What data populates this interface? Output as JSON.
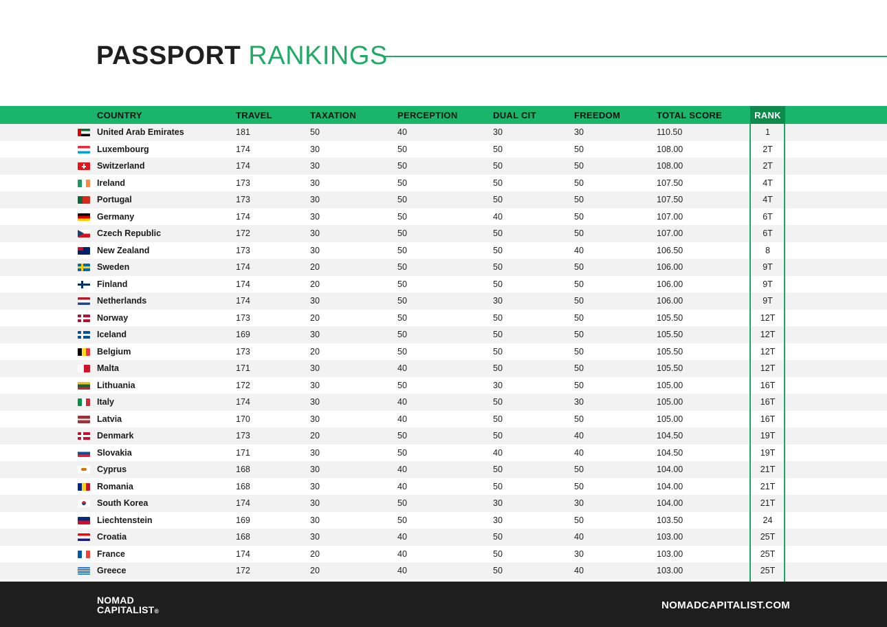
{
  "title": {
    "part1": "PASSPORT",
    "part2": "RANKINGS"
  },
  "headers": {
    "country": "COUNTRY",
    "travel": "TRAVEL",
    "taxation": "TAXATION",
    "perception": "PERCEPTION",
    "dual_cit": "DUAL CIT",
    "freedom": "FREEDOM",
    "total_score": "TOTAL SCORE",
    "rank": "RANK"
  },
  "rows": [
    {
      "country": "United Arab Emirates",
      "flag": "ae",
      "travel": "181",
      "taxation": "50",
      "perception": "40",
      "dual_cit": "30",
      "freedom": "30",
      "total": "110.50",
      "rank": "1"
    },
    {
      "country": "Luxembourg",
      "flag": "lu",
      "travel": "174",
      "taxation": "30",
      "perception": "50",
      "dual_cit": "50",
      "freedom": "50",
      "total": "108.00",
      "rank": "2T"
    },
    {
      "country": "Switzerland",
      "flag": "ch",
      "travel": "174",
      "taxation": "30",
      "perception": "50",
      "dual_cit": "50",
      "freedom": "50",
      "total": "108.00",
      "rank": "2T"
    },
    {
      "country": "Ireland",
      "flag": "ie",
      "travel": "173",
      "taxation": "30",
      "perception": "50",
      "dual_cit": "50",
      "freedom": "50",
      "total": "107.50",
      "rank": "4T"
    },
    {
      "country": "Portugal",
      "flag": "pt",
      "travel": "173",
      "taxation": "30",
      "perception": "50",
      "dual_cit": "50",
      "freedom": "50",
      "total": "107.50",
      "rank": "4T"
    },
    {
      "country": "Germany",
      "flag": "de",
      "travel": "174",
      "taxation": "30",
      "perception": "50",
      "dual_cit": "40",
      "freedom": "50",
      "total": "107.00",
      "rank": "6T"
    },
    {
      "country": "Czech Republic",
      "flag": "cz",
      "travel": "172",
      "taxation": "30",
      "perception": "50",
      "dual_cit": "50",
      "freedom": "50",
      "total": "107.00",
      "rank": "6T"
    },
    {
      "country": "New Zealand",
      "flag": "nz",
      "travel": "173",
      "taxation": "30",
      "perception": "50",
      "dual_cit": "50",
      "freedom": "40",
      "total": "106.50",
      "rank": "8"
    },
    {
      "country": "Sweden",
      "flag": "se",
      "travel": "174",
      "taxation": "20",
      "perception": "50",
      "dual_cit": "50",
      "freedom": "50",
      "total": "106.00",
      "rank": "9T"
    },
    {
      "country": "Finland",
      "flag": "fi",
      "travel": "174",
      "taxation": "20",
      "perception": "50",
      "dual_cit": "50",
      "freedom": "50",
      "total": "106.00",
      "rank": "9T"
    },
    {
      "country": "Netherlands",
      "flag": "nl",
      "travel": "174",
      "taxation": "30",
      "perception": "50",
      "dual_cit": "30",
      "freedom": "50",
      "total": "106.00",
      "rank": "9T"
    },
    {
      "country": "Norway",
      "flag": "no",
      "travel": "173",
      "taxation": "20",
      "perception": "50",
      "dual_cit": "50",
      "freedom": "50",
      "total": "105.50",
      "rank": "12T"
    },
    {
      "country": "Iceland",
      "flag": "is",
      "travel": "169",
      "taxation": "30",
      "perception": "50",
      "dual_cit": "50",
      "freedom": "50",
      "total": "105.50",
      "rank": "12T"
    },
    {
      "country": "Belgium",
      "flag": "be",
      "travel": "173",
      "taxation": "20",
      "perception": "50",
      "dual_cit": "50",
      "freedom": "50",
      "total": "105.50",
      "rank": "12T"
    },
    {
      "country": "Malta",
      "flag": "mt",
      "travel": "171",
      "taxation": "30",
      "perception": "40",
      "dual_cit": "50",
      "freedom": "50",
      "total": "105.50",
      "rank": "12T"
    },
    {
      "country": "Lithuania",
      "flag": "lt",
      "travel": "172",
      "taxation": "30",
      "perception": "50",
      "dual_cit": "30",
      "freedom": "50",
      "total": "105.00",
      "rank": "16T"
    },
    {
      "country": "Italy",
      "flag": "it",
      "travel": "174",
      "taxation": "30",
      "perception": "40",
      "dual_cit": "50",
      "freedom": "30",
      "total": "105.00",
      "rank": "16T"
    },
    {
      "country": "Latvia",
      "flag": "lv",
      "travel": "170",
      "taxation": "30",
      "perception": "40",
      "dual_cit": "50",
      "freedom": "50",
      "total": "105.00",
      "rank": "16T"
    },
    {
      "country": "Denmark",
      "flag": "dk",
      "travel": "173",
      "taxation": "20",
      "perception": "50",
      "dual_cit": "50",
      "freedom": "40",
      "total": "104.50",
      "rank": "19T"
    },
    {
      "country": "Slovakia",
      "flag": "sk",
      "travel": "171",
      "taxation": "30",
      "perception": "50",
      "dual_cit": "40",
      "freedom": "40",
      "total": "104.50",
      "rank": "19T"
    },
    {
      "country": "Cyprus",
      "flag": "cy",
      "travel": "168",
      "taxation": "30",
      "perception": "40",
      "dual_cit": "50",
      "freedom": "50",
      "total": "104.00",
      "rank": "21T"
    },
    {
      "country": "Romania",
      "flag": "ro",
      "travel": "168",
      "taxation": "30",
      "perception": "40",
      "dual_cit": "50",
      "freedom": "50",
      "total": "104.00",
      "rank": "21T"
    },
    {
      "country": "South Korea",
      "flag": "kr",
      "travel": "174",
      "taxation": "30",
      "perception": "50",
      "dual_cit": "30",
      "freedom": "30",
      "total": "104.00",
      "rank": "21T"
    },
    {
      "country": "Liechtenstein",
      "flag": "li",
      "travel": "169",
      "taxation": "30",
      "perception": "50",
      "dual_cit": "30",
      "freedom": "50",
      "total": "103.50",
      "rank": "24"
    },
    {
      "country": "Croatia",
      "flag": "hr",
      "travel": "168",
      "taxation": "30",
      "perception": "40",
      "dual_cit": "50",
      "freedom": "40",
      "total": "103.00",
      "rank": "25T"
    },
    {
      "country": "France",
      "flag": "fr",
      "travel": "174",
      "taxation": "20",
      "perception": "40",
      "dual_cit": "50",
      "freedom": "30",
      "total": "103.00",
      "rank": "25T"
    },
    {
      "country": "Greece",
      "flag": "gr",
      "travel": "172",
      "taxation": "20",
      "perception": "40",
      "dual_cit": "50",
      "freedom": "40",
      "total": "103.00",
      "rank": "25T"
    }
  ],
  "footer": {
    "logo_line1": "NOMAD",
    "logo_line2": "CAPITALIST",
    "logo_reg": "®",
    "website": "NOMADCAPITALIST.COM"
  },
  "colors": {
    "accent": "#18b56a",
    "rank_header": "#0d8a4c",
    "footer_bg": "#1e1e1e",
    "row_alt": "#f2f2f2"
  }
}
